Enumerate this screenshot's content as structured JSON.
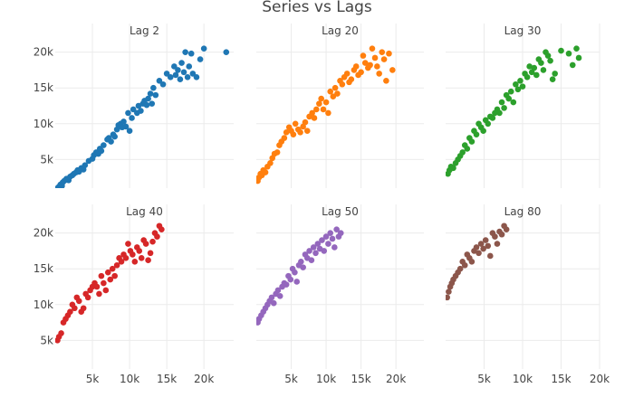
{
  "chart_data": {
    "type": "scatter",
    "title": "Series vs Lags",
    "xlabel": "",
    "ylabel": "",
    "grid": true,
    "xlim": [
      0,
      24000
    ],
    "ylim": [
      1000,
      24000
    ],
    "x_ticks": [
      5000,
      10000,
      15000,
      20000
    ],
    "x_tick_labels": [
      "5k",
      "10k",
      "15k",
      "20k"
    ],
    "y_ticks": [
      5000,
      10000,
      15000,
      20000
    ],
    "y_tick_labels": [
      "5k",
      "10k",
      "15k",
      "20k"
    ],
    "panels": [
      {
        "label": "Lag 2",
        "color": "#1f77b4",
        "x": [
          300,
          500,
          700,
          900,
          1000,
          1200,
          1500,
          1800,
          2000,
          2300,
          2500,
          2800,
          3000,
          3200,
          3500,
          3800,
          4000,
          4500,
          5000,
          5200,
          5500,
          5800,
          6000,
          6200,
          6500,
          7000,
          7200,
          7500,
          7800,
          8000,
          8300,
          8500,
          8800,
          9000,
          9200,
          9500,
          9800,
          10000,
          10300,
          10500,
          11000,
          11200,
          11500,
          11800,
          12000,
          12300,
          12500,
          12800,
          13000,
          13200,
          13500,
          14000,
          14500,
          15000,
          15500,
          16000,
          16200,
          16500,
          16800,
          17000,
          17300,
          17500,
          17800,
          18000,
          18300,
          18500,
          19000,
          19500,
          20000,
          23000
        ],
        "y": [
          1000,
          1200,
          1500,
          1300,
          1800,
          2000,
          2300,
          2100,
          2600,
          2800,
          3000,
          3200,
          3500,
          3300,
          3800,
          3600,
          4200,
          4800,
          5100,
          5600,
          6000,
          5800,
          6500,
          6200,
          7000,
          7800,
          8000,
          7500,
          8500,
          8200,
          9200,
          9800,
          10000,
          9500,
          10300,
          9600,
          11500,
          9000,
          10800,
          12000,
          11500,
          12500,
          11800,
          12800,
          13200,
          12600,
          13500,
          14200,
          12800,
          15000,
          14000,
          16000,
          15500,
          17000,
          16500,
          18000,
          16800,
          17500,
          16200,
          18500,
          17200,
          20000,
          16500,
          18000,
          19800,
          17000,
          16500,
          19000,
          20500,
          20000
        ]
      },
      {
        "label": "Lag 20",
        "color": "#ff7f0e",
        "x": [
          200,
          400,
          600,
          800,
          1000,
          1300,
          1600,
          2000,
          2300,
          2600,
          3000,
          3300,
          3600,
          4000,
          4300,
          4700,
          5000,
          5300,
          5600,
          6000,
          6300,
          6700,
          7000,
          7300,
          7600,
          8000,
          8300,
          8600,
          9000,
          9300,
          9600,
          10000,
          10300,
          10600,
          11000,
          11300,
          11600,
          12000,
          12300,
          12600,
          13000,
          13300,
          13600,
          14000,
          14300,
          14600,
          15000,
          15300,
          15600,
          16000,
          16300,
          16600,
          17000,
          17300,
          17600,
          18000,
          18300,
          18600,
          19000,
          19500
        ],
        "y": [
          2000,
          2500,
          3000,
          2800,
          3500,
          3200,
          4000,
          4500,
          5200,
          5800,
          6000,
          7000,
          7500,
          8000,
          8800,
          9500,
          9000,
          8500,
          10000,
          9200,
          8800,
          9600,
          10200,
          9000,
          11000,
          11500,
          10800,
          12000,
          12800,
          13500,
          12000,
          13000,
          11500,
          14500,
          13800,
          15000,
          14200,
          16000,
          15500,
          16500,
          17000,
          15800,
          16200,
          17500,
          18000,
          16800,
          17200,
          19500,
          18500,
          17800,
          18200,
          20500,
          19200,
          18000,
          17000,
          20000,
          19000,
          16000,
          19800,
          17500
        ]
      },
      {
        "label": "Lag 30",
        "color": "#2ca02c",
        "x": [
          300,
          500,
          700,
          1000,
          1300,
          1600,
          1900,
          2200,
          2500,
          2800,
          3100,
          3400,
          3700,
          4000,
          4300,
          4600,
          4900,
          5200,
          5500,
          5800,
          6100,
          6400,
          6700,
          7000,
          7300,
          7600,
          7900,
          8200,
          8500,
          8800,
          9100,
          9400,
          9700,
          10000,
          10300,
          10600,
          10900,
          11200,
          11500,
          11800,
          12100,
          12400,
          12700,
          13000,
          13300,
          13600,
          13900,
          14200,
          15000,
          16000,
          16500,
          17000,
          17300
        ],
        "y": [
          3000,
          3500,
          4000,
          3800,
          4500,
          5000,
          5500,
          6000,
          7000,
          6500,
          8000,
          7500,
          9000,
          8500,
          10000,
          9500,
          9000,
          10500,
          10000,
          11000,
          10800,
          11500,
          12000,
          11500,
          13000,
          12200,
          14000,
          13500,
          14500,
          13000,
          15500,
          14800,
          16000,
          15200,
          17000,
          16500,
          18000,
          17200,
          17800,
          16800,
          19000,
          18500,
          17500,
          20000,
          19500,
          18800,
          16200,
          17000,
          20200,
          19800,
          18200,
          20500,
          19200
        ]
      },
      {
        "label": "Lag 40",
        "color": "#d62728",
        "x": [
          300,
          500,
          800,
          1100,
          1400,
          1700,
          2000,
          2300,
          2600,
          2900,
          3200,
          3500,
          3800,
          4100,
          4400,
          4700,
          5000,
          5300,
          5600,
          5900,
          6200,
          6500,
          6800,
          7100,
          7400,
          7700,
          8000,
          8300,
          8600,
          8900,
          9200,
          9500,
          9800,
          10100,
          10400,
          10700,
          11000,
          11300,
          11600,
          11900,
          12200,
          12500,
          12800,
          13100,
          13400,
          13700,
          14000,
          14300
        ],
        "y": [
          5000,
          5500,
          6000,
          7500,
          8000,
          8500,
          9000,
          10000,
          9500,
          11000,
          10500,
          9000,
          9500,
          11500,
          11000,
          12000,
          12500,
          13000,
          12500,
          11500,
          14000,
          13000,
          12000,
          14500,
          13500,
          15000,
          14000,
          15500,
          16500,
          16000,
          17000,
          16500,
          18500,
          17500,
          17000,
          16000,
          18000,
          17500,
          16500,
          19000,
          18500,
          16200,
          17200,
          18800,
          20000,
          19500,
          21000,
          20500
        ]
      },
      {
        "label": "Lag 50",
        "color": "#9467bd",
        "x": [
          200,
          400,
          700,
          1000,
          1300,
          1600,
          1900,
          2200,
          2500,
          2800,
          3100,
          3400,
          3700,
          4000,
          4300,
          4600,
          4900,
          5200,
          5500,
          5800,
          6100,
          6400,
          6700,
          7000,
          7300,
          7600,
          7900,
          8200,
          8500,
          8800,
          9100,
          9400,
          9700,
          10000,
          10300,
          10600,
          10900,
          11200,
          11500,
          11800,
          12100
        ],
        "y": [
          7500,
          8000,
          8500,
          9000,
          9500,
          10000,
          10500,
          11000,
          10200,
          11500,
          12000,
          11200,
          12500,
          13000,
          12800,
          14000,
          13500,
          15000,
          14500,
          13200,
          15500,
          16000,
          15200,
          17000,
          16500,
          17500,
          16200,
          18000,
          17200,
          18500,
          17800,
          19000,
          17500,
          19500,
          18500,
          20000,
          19200,
          18000,
          20500,
          19500,
          20000
        ]
      },
      {
        "label": "Lag 80",
        "color": "#8c564b",
        "x": [
          200,
          400,
          600,
          800,
          1000,
          1300,
          1600,
          1900,
          2200,
          2500,
          2800,
          3100,
          3400,
          3700,
          4000,
          4300,
          4600,
          4900,
          5200,
          5500,
          5800,
          6100,
          6400,
          6700,
          7000,
          7300,
          7600,
          7900
        ],
        "y": [
          11000,
          11800,
          12500,
          13000,
          13500,
          14000,
          14500,
          15000,
          16000,
          15500,
          17000,
          16500,
          16000,
          17500,
          18000,
          17200,
          18500,
          17800,
          19000,
          18200,
          16800,
          20000,
          19500,
          18500,
          20200,
          19800,
          21000,
          20500
        ]
      }
    ]
  }
}
